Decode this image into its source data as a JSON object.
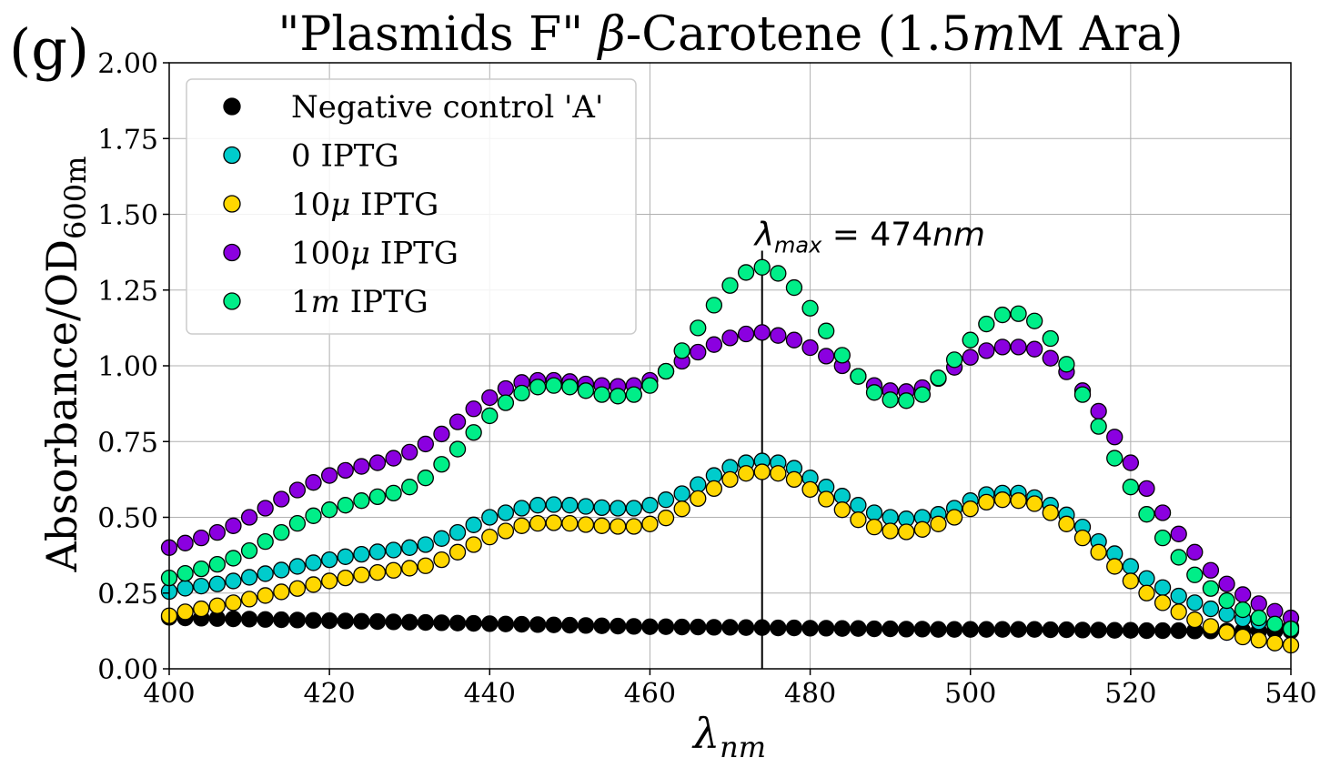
{
  "panel_label": "(g)",
  "chart_data": {
    "type": "scatter",
    "title": {
      "prefix": "\"Plasmids F\" ",
      "greek": "β",
      "middle": "-Carotene (1.5",
      "unit_italic": "m",
      "suffix": "M Ara)"
    },
    "xlabel": {
      "main": "λ",
      "sub": "nm"
    },
    "ylabel": {
      "main": "Absorbance/OD",
      "sub": "600m"
    },
    "xlim": [
      400,
      540
    ],
    "ylim": [
      0,
      2
    ],
    "xticks": [
      "400",
      "420",
      "440",
      "460",
      "480",
      "500",
      "520",
      "540"
    ],
    "yticks": [
      "0.00",
      "0.25",
      "0.50",
      "0.75",
      "1.00",
      "1.25",
      "1.50",
      "1.75",
      "2.00"
    ],
    "grid": true,
    "legend_position": "upper-left",
    "annotation": {
      "lambda": "λ",
      "sub": "max",
      "rest": " = 474",
      "unit": "nm",
      "x": 474,
      "y_top": 1.38
    },
    "x": [
      400,
      402,
      404,
      406,
      408,
      410,
      412,
      414,
      416,
      418,
      420,
      422,
      424,
      426,
      428,
      430,
      432,
      434,
      436,
      438,
      440,
      442,
      444,
      446,
      448,
      450,
      452,
      454,
      456,
      458,
      460,
      462,
      464,
      466,
      468,
      470,
      472,
      474,
      476,
      478,
      480,
      482,
      484,
      486,
      488,
      490,
      492,
      494,
      496,
      498,
      500,
      502,
      504,
      506,
      508,
      510,
      512,
      514,
      516,
      518,
      520,
      522,
      524,
      526,
      528,
      530,
      532,
      534,
      536,
      538,
      540
    ],
    "series": [
      {
        "name": "Negative control 'A'",
        "color": "#000000",
        "values": [
          0.17,
          0.168,
          0.167,
          0.166,
          0.165,
          0.164,
          0.163,
          0.162,
          0.161,
          0.16,
          0.159,
          0.158,
          0.157,
          0.156,
          0.155,
          0.154,
          0.153,
          0.152,
          0.151,
          0.15,
          0.149,
          0.148,
          0.147,
          0.146,
          0.145,
          0.144,
          0.143,
          0.142,
          0.141,
          0.14,
          0.139,
          0.139,
          0.138,
          0.138,
          0.137,
          0.137,
          0.136,
          0.136,
          0.135,
          0.135,
          0.134,
          0.134,
          0.133,
          0.133,
          0.132,
          0.132,
          0.131,
          0.131,
          0.13,
          0.13,
          0.13,
          0.13,
          0.13,
          0.13,
          0.13,
          0.129,
          0.129,
          0.128,
          0.128,
          0.127,
          0.127,
          0.126,
          0.126,
          0.126,
          0.125,
          0.125,
          0.125,
          0.125,
          0.125,
          0.125,
          0.125
        ]
      },
      {
        "name": "0 IPTG",
        "color": "#00cccc",
        "values": [
          0.255,
          0.266,
          0.273,
          0.28,
          0.29,
          0.302,
          0.314,
          0.326,
          0.338,
          0.35,
          0.36,
          0.37,
          0.378,
          0.386,
          0.392,
          0.4,
          0.41,
          0.43,
          0.45,
          0.475,
          0.5,
          0.515,
          0.53,
          0.54,
          0.542,
          0.54,
          0.536,
          0.532,
          0.53,
          0.53,
          0.54,
          0.558,
          0.578,
          0.608,
          0.638,
          0.665,
          0.68,
          0.686,
          0.68,
          0.662,
          0.63,
          0.6,
          0.57,
          0.54,
          0.515,
          0.5,
          0.495,
          0.5,
          0.51,
          0.53,
          0.555,
          0.575,
          0.58,
          0.58,
          0.565,
          0.54,
          0.508,
          0.468,
          0.42,
          0.38,
          0.338,
          0.298,
          0.268,
          0.24,
          0.218,
          0.198,
          0.18,
          0.165,
          0.155,
          0.145,
          0.138
        ]
      },
      {
        "name": "10μ IPTG",
        "color": "#ffd700",
        "values": [
          0.175,
          0.188,
          0.198,
          0.208,
          0.218,
          0.23,
          0.242,
          0.254,
          0.265,
          0.278,
          0.29,
          0.3,
          0.31,
          0.318,
          0.325,
          0.332,
          0.34,
          0.36,
          0.385,
          0.41,
          0.435,
          0.455,
          0.472,
          0.48,
          0.482,
          0.48,
          0.476,
          0.472,
          0.47,
          0.47,
          0.478,
          0.498,
          0.528,
          0.562,
          0.595,
          0.625,
          0.645,
          0.65,
          0.645,
          0.625,
          0.592,
          0.56,
          0.525,
          0.492,
          0.468,
          0.455,
          0.452,
          0.46,
          0.478,
          0.5,
          0.528,
          0.55,
          0.558,
          0.555,
          0.545,
          0.515,
          0.478,
          0.432,
          0.385,
          0.338,
          0.29,
          0.25,
          0.218,
          0.188,
          0.162,
          0.14,
          0.12,
          0.105,
          0.095,
          0.085,
          0.078
        ]
      },
      {
        "name": "100μ IPTG",
        "color": "#8b00e0",
        "values": [
          0.4,
          0.415,
          0.432,
          0.45,
          0.472,
          0.5,
          0.53,
          0.56,
          0.59,
          0.615,
          0.638,
          0.655,
          0.668,
          0.68,
          0.695,
          0.715,
          0.742,
          0.775,
          0.815,
          0.858,
          0.895,
          0.925,
          0.945,
          0.952,
          0.952,
          0.948,
          0.94,
          0.935,
          0.932,
          0.935,
          0.952,
          0.982,
          1.015,
          1.045,
          1.07,
          1.092,
          1.105,
          1.11,
          1.1,
          1.085,
          1.06,
          1.032,
          1.0,
          0.965,
          0.935,
          0.918,
          0.915,
          0.928,
          0.958,
          0.995,
          1.028,
          1.05,
          1.062,
          1.062,
          1.055,
          1.025,
          0.98,
          0.918,
          0.85,
          0.765,
          0.68,
          0.595,
          0.515,
          0.445,
          0.385,
          0.325,
          0.28,
          0.245,
          0.215,
          0.19,
          0.168
        ]
      },
      {
        "name": "1m IPTG",
        "color": "#00ee88",
        "values": [
          0.3,
          0.315,
          0.33,
          0.345,
          0.365,
          0.39,
          0.42,
          0.45,
          0.48,
          0.505,
          0.525,
          0.54,
          0.555,
          0.568,
          0.58,
          0.6,
          0.63,
          0.675,
          0.725,
          0.78,
          0.835,
          0.878,
          0.91,
          0.93,
          0.935,
          0.93,
          0.918,
          0.905,
          0.9,
          0.905,
          0.935,
          0.982,
          1.05,
          1.125,
          1.2,
          1.265,
          1.308,
          1.325,
          1.305,
          1.258,
          1.19,
          1.115,
          1.035,
          0.965,
          0.912,
          0.888,
          0.885,
          0.905,
          0.96,
          1.02,
          1.085,
          1.138,
          1.168,
          1.172,
          1.148,
          1.09,
          1.005,
          0.905,
          0.8,
          0.695,
          0.6,
          0.51,
          0.432,
          0.368,
          0.31,
          0.265,
          0.225,
          0.195,
          0.168,
          0.148,
          0.132
        ]
      }
    ]
  }
}
